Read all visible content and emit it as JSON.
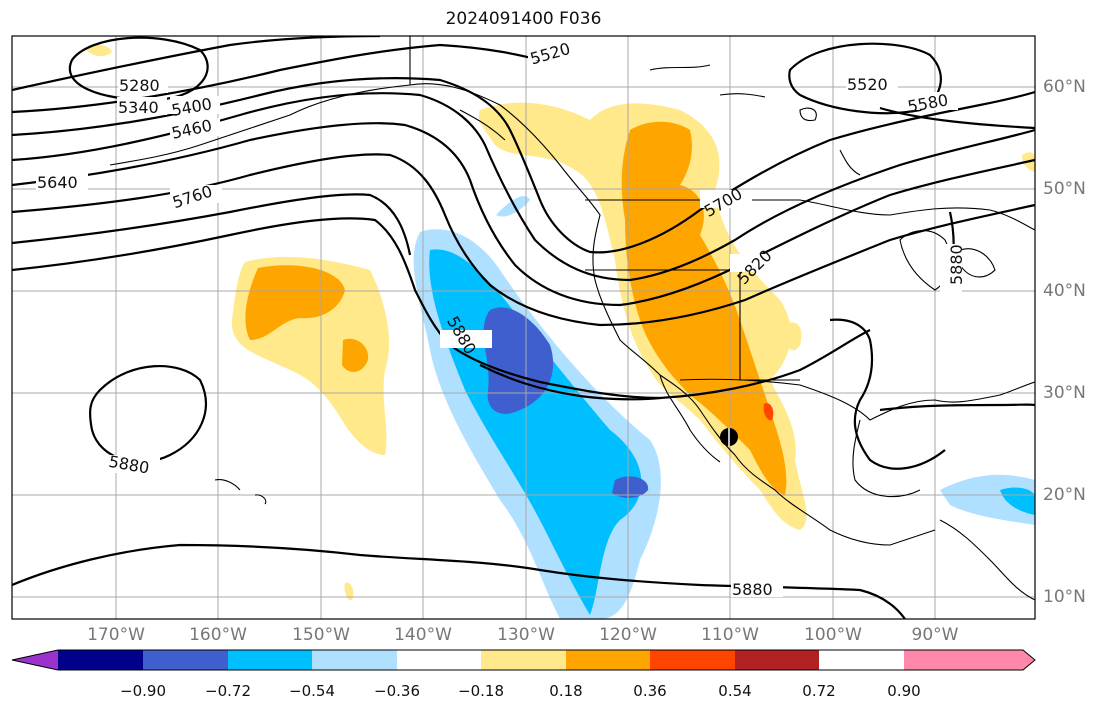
{
  "title": "2024091400 F036",
  "map": {
    "lat_labels": [
      "60°N",
      "50°N",
      "40°N",
      "30°N",
      "20°N",
      "10°N"
    ],
    "lon_labels": [
      "170°W",
      "160°W",
      "150°W",
      "140°W",
      "130°W",
      "120°W",
      "110°W",
      "100°W",
      "90°W"
    ],
    "contour_labels": [
      "5280",
      "5340",
      "5400",
      "5460",
      "5520",
      "5520",
      "5580",
      "5640",
      "5700",
      "5760",
      "5820",
      "5880",
      "5880",
      "5880",
      "5880"
    ],
    "marker": {
      "lat": 26,
      "lon": -110,
      "symbol": "filled-circle"
    }
  },
  "colorbar": {
    "ticks": [
      "−0.90",
      "−0.72",
      "−0.54",
      "−0.36",
      "−0.18",
      "0.18",
      "0.36",
      "0.54",
      "0.72",
      "0.90"
    ],
    "colors": [
      "#9933cc",
      "#00008b",
      "#3f5fcf",
      "#00bfff",
      "#b0e0ff",
      "#ffffff",
      "#ffe98a",
      "#ffa500",
      "#ff4500",
      "#b22222",
      "#ff88aa"
    ]
  }
}
